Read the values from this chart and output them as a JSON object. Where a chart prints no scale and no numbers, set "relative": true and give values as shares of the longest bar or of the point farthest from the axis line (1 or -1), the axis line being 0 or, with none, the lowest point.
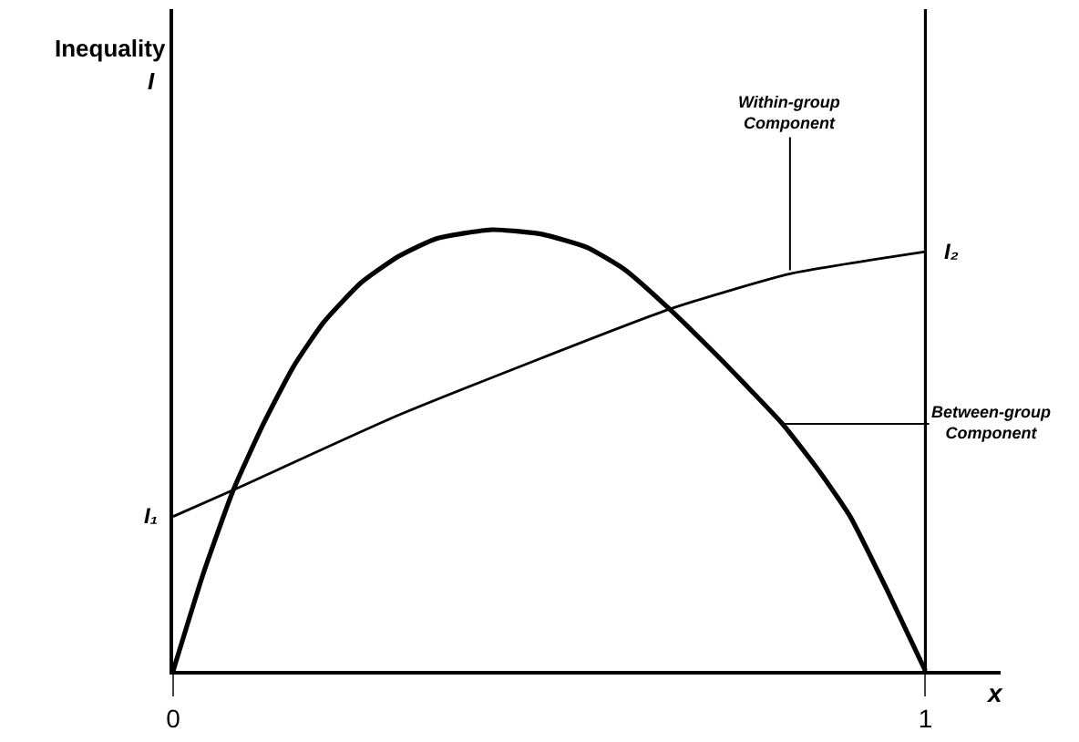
{
  "chart_data": {
    "type": "line",
    "relative": true,
    "title": "Inequality",
    "xlabel": "x",
    "xlim": [
      0,
      1.1
    ],
    "xticks": [
      0,
      1
    ],
    "series": [
      {
        "color": "#000000",
        "x": [
          0,
          0.04,
          0.08,
          0.12,
          0.16,
          0.2,
          0.25,
          0.3,
          0.35,
          0.424,
          0.49,
          0.55,
          0.6,
          0.66,
          0.72,
          0.76,
          0.81,
          0.86,
          0.9,
          0.95,
          1
        ],
        "values": [
          0,
          0.22,
          0.41,
          0.56,
          0.69,
          0.79,
          0.88,
          0.94,
          0.98,
          1,
          0.99,
          0.96,
          0.91,
          0.82,
          0.72,
          0.65,
          0.56,
          0.45,
          0.35,
          0.18,
          0
        ]
      },
      {
        "color": "#000000",
        "x": [
          0,
          0.08,
          0.3,
          0.66,
          0.82,
          1
        ],
        "values": [
          0.35,
          0.41,
          0.58,
          0.82,
          0.9,
          0.95
        ]
      }
    ],
    "ref_lines": [
      {
        "axis": "x",
        "value": 1,
        "color": "#000000"
      }
    ],
    "annotations": [
      {
        "text": "I₁",
        "x": 0,
        "y": 0.35
      },
      {
        "text": "I₂",
        "x": 1,
        "y": 0.95
      },
      {
        "text": "Within-group Component",
        "x": 0.82,
        "y": 0.9
      },
      {
        "text": "Between-group Component",
        "x": 0.81,
        "y": 0.56
      },
      "I"
    ],
    "legend": false,
    "marker": "none",
    "line_style": "solid"
  }
}
